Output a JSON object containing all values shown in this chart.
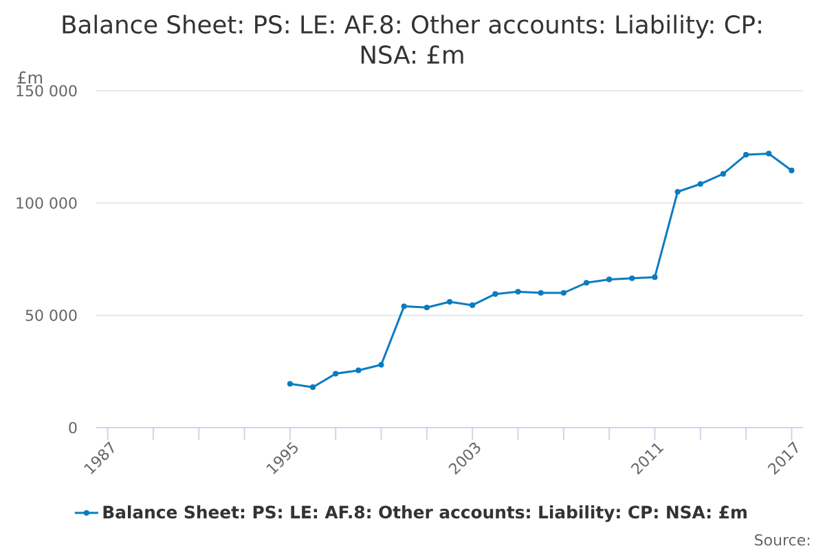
{
  "chart_data": {
    "type": "line",
    "title": "Balance Sheet: PS: LE: AF.8: Other accounts: Liability: CP: NSA: £m",
    "ylabel": "£m",
    "x": [
      1995,
      1996,
      1997,
      1998,
      1999,
      2000,
      2001,
      2002,
      2003,
      2004,
      2005,
      2006,
      2007,
      2008,
      2009,
      2010,
      2011,
      2012,
      2013,
      2014,
      2015,
      2016,
      2017
    ],
    "series": [
      {
        "name": "Balance Sheet: PS: LE: AF.8: Other accounts: Liability: CP: NSA: £m",
        "color": "#0a7cc1",
        "values": [
          19500,
          18000,
          24000,
          25500,
          28000,
          54000,
          53500,
          56000,
          54500,
          59500,
          60500,
          60000,
          60000,
          64500,
          66000,
          66500,
          67000,
          105000,
          108500,
          113000,
          121500,
          122000,
          114500
        ]
      }
    ],
    "xlim": [
      1986.5,
      2017.5
    ],
    "xticks": [
      1987,
      {
        "value": 1989,
        "label": null
      },
      {
        "value": 1991,
        "label": null
      },
      {
        "value": 1993,
        "label": null
      },
      1995,
      {
        "value": 1997,
        "label": null
      },
      {
        "value": 1999,
        "label": null
      },
      {
        "value": 2001,
        "label": null
      },
      2003,
      {
        "value": 2005,
        "label": null
      },
      {
        "value": 2007,
        "label": null
      },
      {
        "value": 2009,
        "label": null
      },
      2011,
      {
        "value": 2013,
        "label": null
      },
      {
        "value": 2015,
        "label": null
      },
      2017
    ],
    "ylim": [
      0,
      150000
    ],
    "yticks": [
      0,
      {
        "value": 50000,
        "label": "50 000"
      },
      {
        "value": 100000,
        "label": "100 000"
      },
      {
        "value": 150000,
        "label": "150 000"
      }
    ],
    "grid": "y",
    "legend": "bottom",
    "marker": "circle",
    "annotations": [
      "Source:"
    ]
  }
}
